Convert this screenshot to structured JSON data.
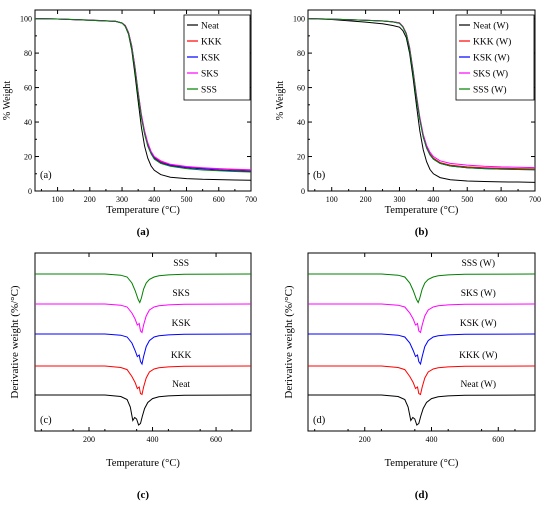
{
  "colors": {
    "Neat": "#000000",
    "KKK": "#ff0000",
    "KSK": "#0000ff",
    "SKS": "#ff00ff",
    "SSS": "#008000"
  },
  "chart_data": [
    {
      "id": "a",
      "type": "line",
      "panel_tag": "(a)",
      "caption": "(a)",
      "xlabel": "Temperature (°C)",
      "ylabel": "% Weight",
      "xlim": [
        30,
        700
      ],
      "ylim": [
        0,
        105
      ],
      "xticks": [
        "100",
        "200",
        "300",
        "400",
        "500",
        "600",
        "700"
      ],
      "yticks": [
        "0",
        "20",
        "40",
        "60",
        "80",
        "100"
      ],
      "legend": {
        "position": "top-right",
        "entries": [
          "Neat",
          "KKK",
          "KSK",
          "SKS",
          "SSS"
        ]
      },
      "series": [
        {
          "name": "Neat",
          "x": [
            30,
            100,
            200,
            280,
            300,
            310,
            320,
            330,
            340,
            350,
            360,
            370,
            380,
            390,
            400,
            420,
            450,
            500,
            550,
            600,
            650,
            700
          ],
          "y": [
            100,
            99.8,
            99.2,
            98.5,
            97.5,
            95.5,
            91,
            82,
            68,
            52,
            37,
            26,
            19,
            14.5,
            12,
            9.5,
            8,
            7.2,
            6.8,
            6.6,
            6.4,
            6.2
          ]
        },
        {
          "name": "KKK",
          "x": [
            30,
            100,
            200,
            280,
            300,
            310,
            320,
            330,
            340,
            350,
            360,
            370,
            380,
            390,
            400,
            420,
            450,
            500,
            550,
            600,
            650,
            700
          ],
          "y": [
            100,
            99.8,
            99.1,
            98.4,
            97.5,
            96,
            92,
            84,
            72,
            57,
            44,
            34,
            27,
            22.5,
            19.5,
            17,
            15.2,
            14,
            13.3,
            12.8,
            12.3,
            12
          ]
        },
        {
          "name": "KSK",
          "x": [
            30,
            100,
            200,
            280,
            300,
            310,
            320,
            330,
            340,
            350,
            360,
            370,
            380,
            390,
            400,
            420,
            450,
            500,
            550,
            600,
            650,
            700
          ],
          "y": [
            100,
            99.8,
            99.1,
            98.4,
            97.4,
            95.8,
            91.8,
            84,
            71.5,
            56.5,
            43,
            33.5,
            26.5,
            22,
            19,
            16.5,
            14.8,
            13.5,
            12.8,
            12.2,
            11.8,
            11.5
          ]
        },
        {
          "name": "SKS",
          "x": [
            30,
            100,
            200,
            280,
            300,
            310,
            320,
            330,
            340,
            350,
            360,
            370,
            380,
            390,
            400,
            420,
            450,
            500,
            550,
            600,
            650,
            700
          ],
          "y": [
            100,
            99.8,
            99.1,
            98.4,
            97.5,
            96,
            92,
            84.5,
            72.5,
            57.5,
            44.5,
            35,
            28,
            23,
            20,
            17.5,
            15.5,
            14.2,
            13.5,
            13,
            12.6,
            12.3
          ]
        },
        {
          "name": "SSS",
          "x": [
            30,
            100,
            200,
            280,
            300,
            310,
            320,
            330,
            340,
            350,
            360,
            370,
            380,
            390,
            400,
            420,
            450,
            500,
            550,
            600,
            650,
            700
          ],
          "y": [
            100,
            99.8,
            99.1,
            98.4,
            97.4,
            95.8,
            91.5,
            83.5,
            71,
            56,
            42.5,
            33,
            26,
            21.5,
            18.5,
            16,
            14.3,
            13,
            12.2,
            11.7,
            11.3,
            11
          ]
        }
      ]
    },
    {
      "id": "b",
      "type": "line",
      "panel_tag": "(b)",
      "caption": "(b)",
      "xlabel": "Temperature (°C)",
      "ylabel": "% Weight",
      "xlim": [
        30,
        700
      ],
      "ylim": [
        0,
        105
      ],
      "xticks": [
        "100",
        "200",
        "300",
        "400",
        "500",
        "600",
        "700"
      ],
      "yticks": [
        "0",
        "20",
        "40",
        "60",
        "80",
        "100"
      ],
      "legend": {
        "position": "top-right",
        "entries": [
          "Neat (W)",
          "KKK (W)",
          "KSK (W)",
          "SKS (W)",
          "SSS (W)"
        ]
      },
      "series": [
        {
          "name": "Neat (W)",
          "x": [
            30,
            100,
            200,
            250,
            280,
            300,
            310,
            320,
            330,
            340,
            350,
            360,
            370,
            380,
            390,
            400,
            420,
            450,
            500,
            550,
            600,
            650,
            700
          ],
          "y": [
            100,
            99.5,
            98,
            97,
            96,
            95,
            93,
            89,
            80,
            66,
            50,
            35,
            24,
            17,
            12.5,
            10,
            7.8,
            6.5,
            5.8,
            5.5,
            5.3,
            5.2,
            5
          ]
        },
        {
          "name": "KKK (W)",
          "x": [
            30,
            100,
            200,
            250,
            280,
            300,
            310,
            320,
            330,
            340,
            350,
            360,
            370,
            380,
            390,
            400,
            420,
            450,
            500,
            550,
            600,
            650,
            700
          ],
          "y": [
            100,
            99.7,
            99,
            98.7,
            98.2,
            97.5,
            95.5,
            91.5,
            83,
            70,
            55,
            42,
            32,
            25.5,
            21.5,
            19,
            16.5,
            15,
            14,
            13.5,
            13.2,
            13,
            12.8
          ]
        },
        {
          "name": "KSK (W)",
          "x": [
            30,
            100,
            200,
            250,
            280,
            300,
            310,
            320,
            330,
            340,
            350,
            360,
            370,
            380,
            390,
            400,
            420,
            450,
            500,
            550,
            600,
            650,
            700
          ],
          "y": [
            100,
            99.7,
            99,
            98.6,
            98.1,
            97.3,
            95.2,
            91,
            82.5,
            69.5,
            54.5,
            41.5,
            31.5,
            25,
            21,
            18.5,
            16,
            14.5,
            13.5,
            13,
            12.7,
            12.5,
            12.3
          ]
        },
        {
          "name": "SKS (W)",
          "x": [
            30,
            100,
            200,
            250,
            280,
            300,
            310,
            320,
            330,
            340,
            350,
            360,
            370,
            380,
            390,
            400,
            420,
            450,
            500,
            550,
            600,
            650,
            700
          ],
          "y": [
            100,
            99.7,
            99,
            98.7,
            98.2,
            97.5,
            95.5,
            91.5,
            83.5,
            70.5,
            56,
            43,
            33,
            26.5,
            22.5,
            20,
            17.5,
            16,
            15,
            14.4,
            14,
            13.8,
            13.6
          ]
        },
        {
          "name": "SSS (W)",
          "x": [
            30,
            100,
            200,
            250,
            280,
            300,
            310,
            320,
            330,
            340,
            350,
            360,
            370,
            380,
            390,
            400,
            420,
            450,
            500,
            550,
            600,
            650,
            700
          ],
          "y": [
            100,
            99.7,
            99,
            98.6,
            98.1,
            97.3,
            95.2,
            91,
            82.5,
            69.5,
            54.5,
            41.5,
            31.5,
            25,
            21,
            18.5,
            16,
            14.5,
            13.5,
            13,
            12.7,
            12.5,
            12.3
          ]
        }
      ]
    },
    {
      "id": "c",
      "type": "line",
      "panel_tag": "(c)",
      "caption": "(c)",
      "xlabel": "Temperature (°C)",
      "ylabel": "Derivative weight (%/°C)",
      "xlim": [
        30,
        710
      ],
      "xticks": [
        "200",
        "400",
        "600"
      ],
      "curve_labels": [
        "SSS",
        "SKS",
        "KSK",
        "KKK",
        "Neat"
      ],
      "series": [
        {
          "name": "SSS",
          "x": [
            30,
            250,
            300,
            320,
            335,
            345,
            355,
            360,
            365,
            372,
            380,
            390,
            405,
            420,
            450,
            500,
            710
          ],
          "y": [
            0,
            0,
            -0.04,
            -0.1,
            -0.3,
            -0.55,
            -0.85,
            -0.95,
            -0.8,
            -0.5,
            -0.3,
            -0.18,
            -0.1,
            -0.06,
            -0.03,
            -0.01,
            0
          ]
        },
        {
          "name": "SKS",
          "x": [
            30,
            250,
            300,
            320,
            335,
            345,
            352,
            358,
            362,
            367,
            372,
            380,
            390,
            405,
            420,
            450,
            500,
            710
          ],
          "y": [
            0,
            0,
            -0.04,
            -0.1,
            -0.3,
            -0.5,
            -0.7,
            -0.65,
            -0.9,
            -0.95,
            -0.7,
            -0.4,
            -0.2,
            -0.1,
            -0.06,
            -0.03,
            -0.01,
            0
          ]
        },
        {
          "name": "KSK",
          "x": [
            30,
            250,
            300,
            320,
            335,
            345,
            352,
            358,
            362,
            367,
            372,
            380,
            390,
            405,
            420,
            450,
            500,
            710
          ],
          "y": [
            0,
            0,
            -0.04,
            -0.1,
            -0.3,
            -0.55,
            -0.75,
            -0.7,
            -0.92,
            -1.0,
            -0.75,
            -0.42,
            -0.22,
            -0.1,
            -0.06,
            -0.03,
            -0.01,
            0
          ]
        },
        {
          "name": "KKK",
          "x": [
            30,
            250,
            300,
            320,
            335,
            345,
            352,
            358,
            362,
            367,
            372,
            380,
            390,
            405,
            420,
            450,
            500,
            710
          ],
          "y": [
            0,
            0,
            -0.05,
            -0.12,
            -0.35,
            -0.55,
            -0.75,
            -0.7,
            -0.92,
            -0.95,
            -0.7,
            -0.4,
            -0.2,
            -0.1,
            -0.06,
            -0.03,
            -0.01,
            0
          ]
        },
        {
          "name": "Neat",
          "x": [
            30,
            250,
            300,
            320,
            330,
            338,
            344,
            350,
            356,
            362,
            368,
            375,
            385,
            400,
            420,
            450,
            500,
            710
          ],
          "y": [
            0,
            0,
            -0.05,
            -0.15,
            -0.4,
            -0.85,
            -0.75,
            -0.8,
            -1.0,
            -0.95,
            -0.7,
            -0.45,
            -0.25,
            -0.12,
            -0.06,
            -0.03,
            -0.01,
            0
          ]
        }
      ]
    },
    {
      "id": "d",
      "type": "line",
      "panel_tag": "(d)",
      "caption": "(d)",
      "xlabel": "Temperature (°C)",
      "ylabel": "Derivative weight (%/°C)",
      "xlim": [
        30,
        710
      ],
      "xticks": [
        "200",
        "400",
        "600"
      ],
      "curve_labels": [
        "SSS (W)",
        "SKS (W)",
        "KSK (W)",
        "KKK (W)",
        "Neat (W)"
      ],
      "series": [
        {
          "name": "SSS (W)",
          "x": [
            30,
            250,
            300,
            320,
            335,
            345,
            355,
            360,
            365,
            372,
            380,
            390,
            405,
            420,
            450,
            500,
            710
          ],
          "y": [
            0,
            0,
            -0.04,
            -0.1,
            -0.3,
            -0.55,
            -0.85,
            -0.95,
            -0.8,
            -0.5,
            -0.3,
            -0.18,
            -0.1,
            -0.06,
            -0.03,
            -0.01,
            0
          ]
        },
        {
          "name": "SKS (W)",
          "x": [
            30,
            250,
            300,
            320,
            335,
            345,
            352,
            358,
            362,
            367,
            372,
            380,
            390,
            405,
            420,
            450,
            500,
            710
          ],
          "y": [
            0,
            0,
            -0.04,
            -0.1,
            -0.3,
            -0.5,
            -0.7,
            -0.65,
            -0.9,
            -0.95,
            -0.7,
            -0.4,
            -0.2,
            -0.1,
            -0.06,
            -0.03,
            -0.01,
            0
          ]
        },
        {
          "name": "KSK (W)",
          "x": [
            30,
            250,
            300,
            320,
            335,
            345,
            352,
            358,
            362,
            367,
            372,
            380,
            390,
            405,
            420,
            450,
            500,
            710
          ],
          "y": [
            0,
            0,
            -0.04,
            -0.1,
            -0.3,
            -0.55,
            -0.75,
            -0.7,
            -0.92,
            -1.0,
            -0.75,
            -0.42,
            -0.22,
            -0.1,
            -0.06,
            -0.03,
            -0.01,
            0
          ]
        },
        {
          "name": "KKK (W)",
          "x": [
            30,
            250,
            300,
            320,
            335,
            345,
            352,
            358,
            362,
            367,
            372,
            380,
            390,
            405,
            420,
            450,
            500,
            710
          ],
          "y": [
            0,
            0,
            -0.05,
            -0.12,
            -0.35,
            -0.55,
            -0.75,
            -0.7,
            -0.92,
            -0.95,
            -0.7,
            -0.4,
            -0.2,
            -0.1,
            -0.06,
            -0.03,
            -0.01,
            0
          ]
        },
        {
          "name": "Neat (W)",
          "x": [
            30,
            250,
            300,
            320,
            330,
            338,
            344,
            350,
            356,
            362,
            368,
            375,
            385,
            400,
            420,
            450,
            500,
            710
          ],
          "y": [
            0,
            0,
            -0.05,
            -0.15,
            -0.4,
            -0.85,
            -0.75,
            -0.8,
            -1.0,
            -0.95,
            -0.7,
            -0.45,
            -0.25,
            -0.12,
            -0.06,
            -0.03,
            -0.01,
            0
          ]
        }
      ]
    }
  ]
}
